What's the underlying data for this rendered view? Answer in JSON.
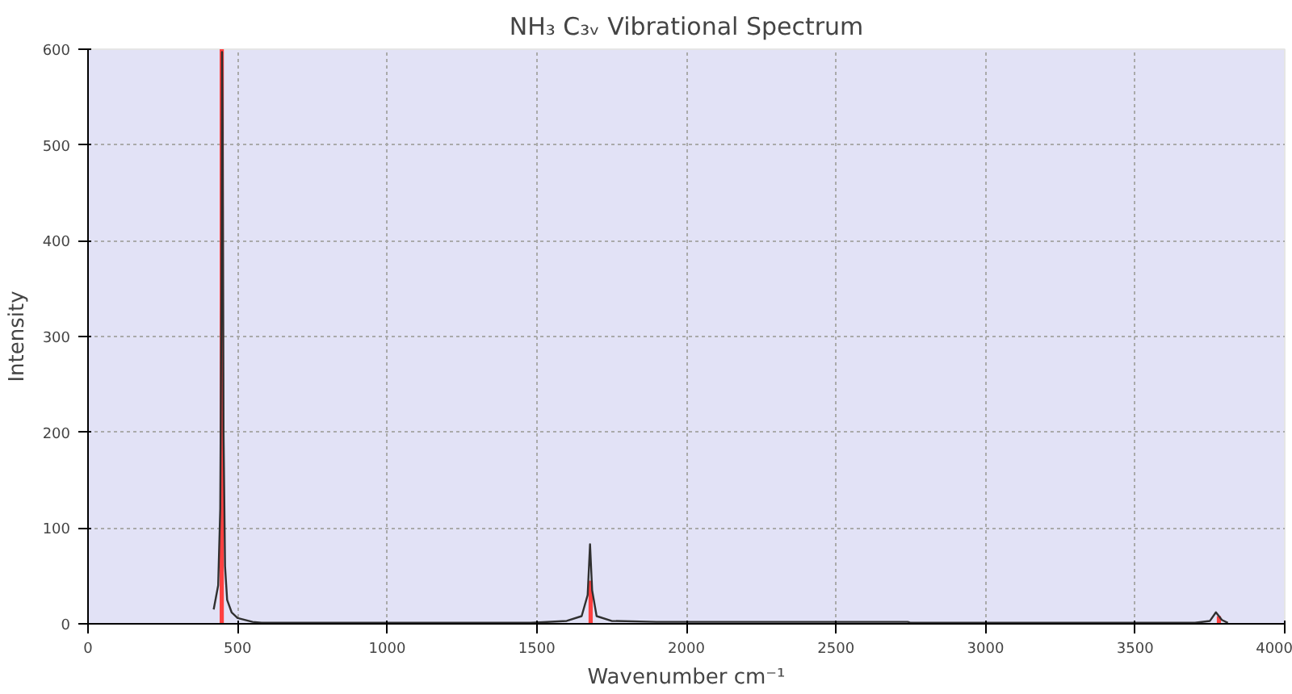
{
  "chart_data": {
    "type": "line",
    "title": "NH₃ C₃ᵥ Vibrational Spectrum",
    "xlabel": "Wavenumber cm⁻¹",
    "ylabel": "Intensity",
    "series": [
      {
        "color": "#303030",
        "x": [
          420,
          435,
          442,
          446,
          448,
          450,
          453,
          458,
          465,
          480,
          500,
          550,
          580,
          1000,
          1480,
          1600,
          1650,
          1670,
          1678,
          1685,
          1700,
          1750,
          1900,
          2500,
          2740,
          2750,
          3700,
          3750,
          3770,
          3790,
          3810
        ],
        "values": [
          15,
          40,
          120,
          350,
          597,
          520,
          200,
          60,
          25,
          12,
          6,
          2,
          1,
          1,
          1,
          3,
          8,
          30,
          83,
          35,
          8,
          3,
          2,
          2,
          2,
          1,
          1,
          3,
          12,
          4,
          1
        ]
      },
      {
        "type": "bar",
        "color": "#ff4040",
        "x": [
          447,
          1680,
          3780
        ],
        "values": [
          600,
          45,
          8
        ]
      }
    ],
    "xlim": [
      0,
      4000
    ],
    "ylim": [
      0,
      600
    ],
    "xticks": [
      0,
      500,
      1000,
      1500,
      2000,
      2500,
      3000,
      3500,
      4000
    ],
    "yticks": [
      0,
      100,
      200,
      300,
      400,
      500,
      600
    ],
    "grid": true,
    "line_style": "solid",
    "marker": "none"
  }
}
